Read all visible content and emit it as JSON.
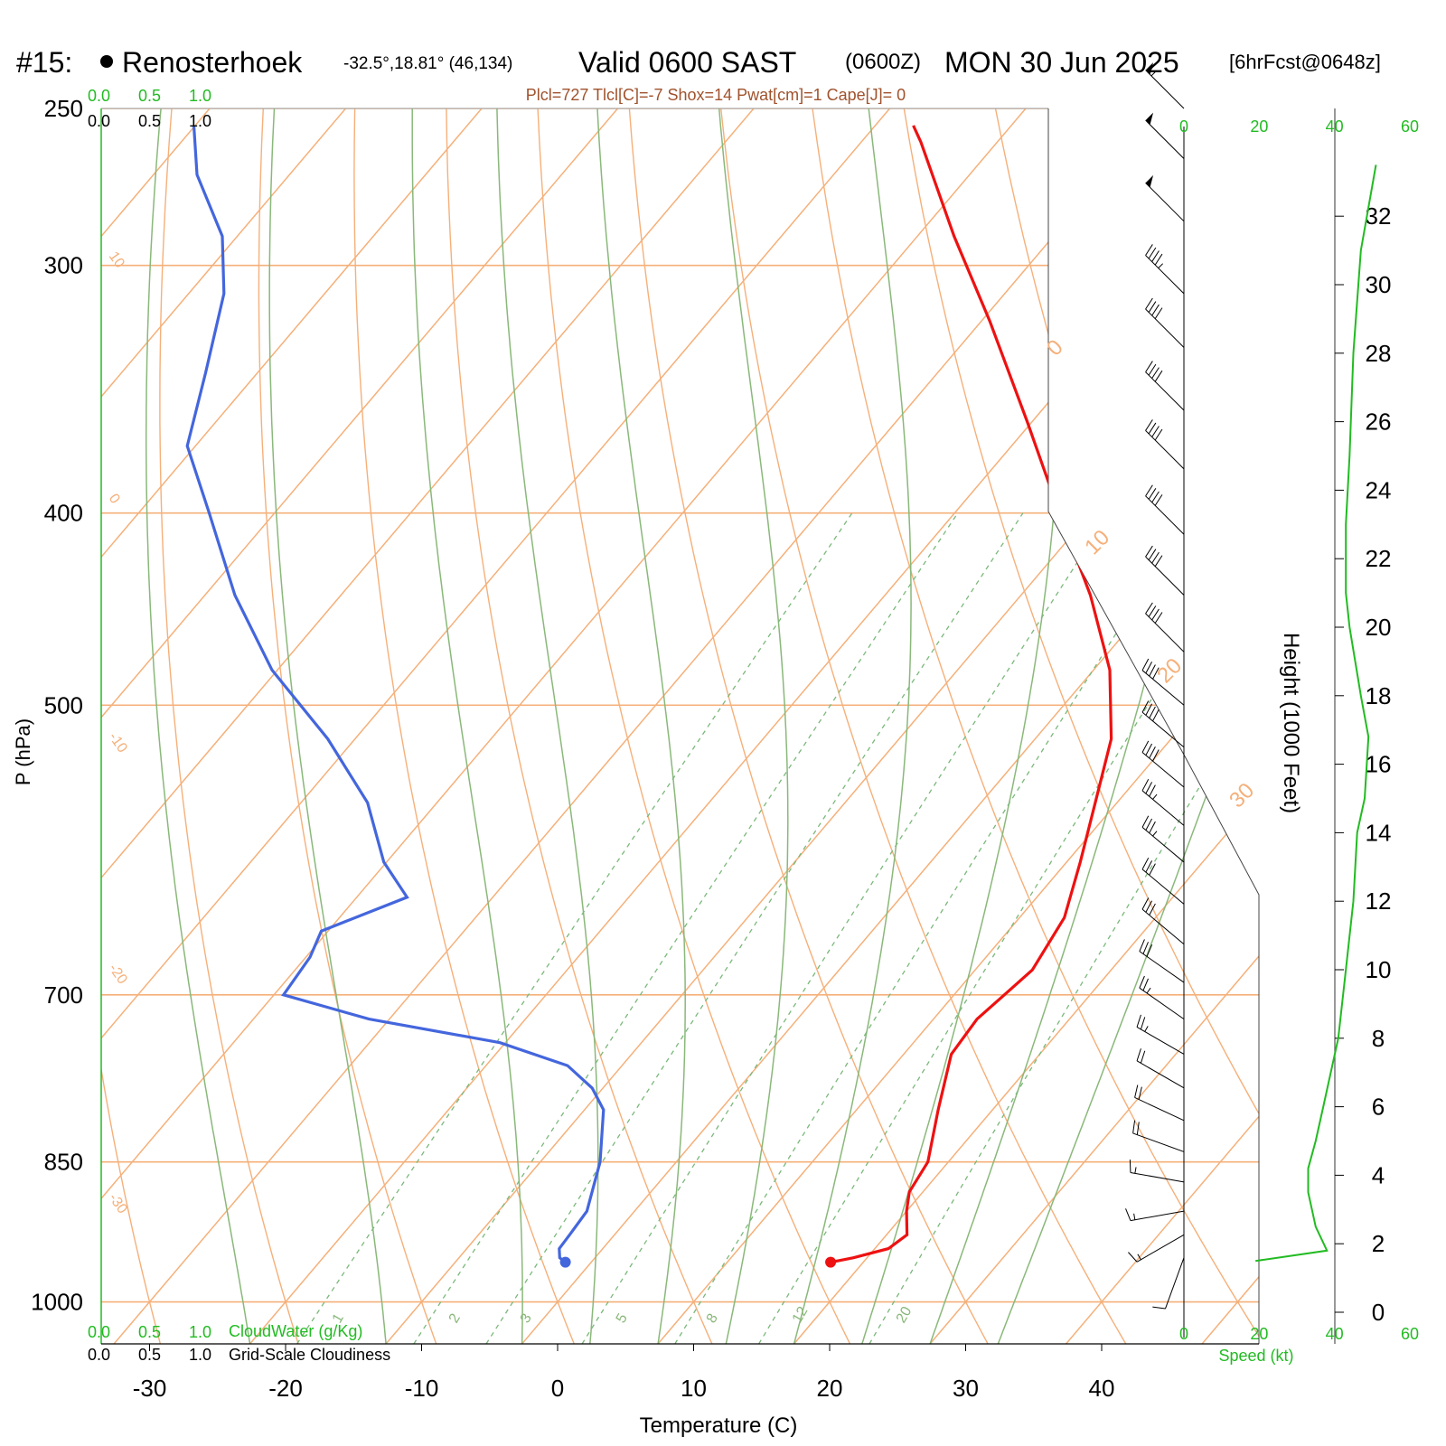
{
  "header": {
    "station_number": "#15:",
    "station_name": "Renosterhoek",
    "station_coords": "-32.5°,18.81° (46,134)",
    "valid_label": "Valid 0600 SAST",
    "utc_label": "(0600Z)",
    "date_label": "MON 30 Jun 2025",
    "forecast_label": "[6hrFcst@0648z]",
    "indices": "Plcl=727 Tlcl[C]=-7 Shox=14 Pwat[cm]=1 Cape[J]= 0"
  },
  "cloud_scale": {
    "top_green": [
      "0.0",
      "0.5",
      "1.0"
    ],
    "top_black": [
      "0.0",
      "0.5",
      "1.0"
    ],
    "bottom_green": [
      "0.0",
      "0.5",
      "1.0"
    ],
    "bottom_black": [
      "0.0",
      "0.5",
      "1.0"
    ],
    "cloudwater_label": "CloudWater (g/Kg)",
    "cloudiness_label": "Grid-Scale Cloudiness"
  },
  "speed_axis": {
    "ticks": [
      "0",
      "20",
      "40",
      "60"
    ],
    "label": "Speed (kt)"
  },
  "colors": {
    "temperature": "#ee1111",
    "dewpoint": "#4466dd",
    "isotherm": "#f5b07a",
    "dry_adiabat": "#f5b07a",
    "moist_adiabat": "#8ab87a",
    "mixing_ratio": "#7ab87a",
    "wind_speed": "#22bb22",
    "indices": "#a0522d"
  },
  "chart_data": {
    "type": "line",
    "title": "Renosterhoek Valid 0600 SAST (0600Z) MON 30 Jun 2025",
    "xlabel": "Temperature (C)",
    "ylabel": "P (hPa)",
    "y2label": "Height (1000 Feet)",
    "x_ticks": [
      "-30",
      "-20",
      "-10",
      "0",
      "10",
      "20",
      "30",
      "40"
    ],
    "y_ticks": [
      "250",
      "300",
      "400",
      "500",
      "700",
      "850",
      "1000"
    ],
    "height_ticks": [
      "0",
      "2",
      "4",
      "6",
      "8",
      "10",
      "12",
      "14",
      "16",
      "18",
      "20",
      "22",
      "24",
      "26",
      "28",
      "30",
      "32"
    ],
    "isotherm_labels": [
      "10",
      "0",
      "-10",
      "-20",
      "-30"
    ],
    "isotherm_labels_right": [
      "0",
      "10",
      "20",
      "30"
    ],
    "mixing_ratio_labels": [
      "1",
      "2",
      "3",
      "5",
      "8",
      "12",
      "20"
    ],
    "series": [
      {
        "name": "Temperature",
        "pressure_hpa": [
          955,
          950,
          940,
          925,
          900,
          880,
          850,
          800,
          750,
          720,
          700,
          680,
          640,
          600,
          560,
          520,
          480,
          440,
          400,
          360,
          320,
          290,
          260,
          255
        ],
        "temperature_c": [
          17.6,
          19,
          21,
          21.5,
          20,
          19,
          18.5,
          16,
          13.5,
          13.2,
          13.7,
          14.2,
          13.3,
          11,
          8.4,
          5.6,
          1.2,
          -4.9,
          -12.3,
          -20.3,
          -29.4,
          -37.3,
          -45.6,
          -47.2
        ]
      },
      {
        "name": "Dewpoint",
        "pressure_hpa": [
          955,
          950,
          940,
          925,
          900,
          850,
          800,
          780,
          760,
          740,
          720,
          700,
          670,
          650,
          625,
          600,
          560,
          520,
          480,
          440,
          400,
          370,
          340,
          310,
          290,
          270,
          255
        ],
        "dewpoint_c": [
          -1.9,
          -2.6,
          -3.2,
          -3.3,
          -3.5,
          -5.6,
          -8.6,
          -10.8,
          -14,
          -20.4,
          -31.5,
          -39.3,
          -39.7,
          -40.5,
          -36.3,
          -40.2,
          -45.1,
          -52,
          -60.4,
          -67.8,
          -74.8,
          -80.6,
          -83.8,
          -87.4,
          -91.1,
          -96.8,
          -100.1
        ]
      }
    ],
    "wind_speed_profile": {
      "height_kft": [
        1.5,
        1.8,
        2.5,
        3.5,
        4.2,
        5,
        6,
        8,
        10,
        12,
        14,
        15,
        16.8,
        18,
        20,
        21,
        23,
        25,
        28,
        31,
        33.5
      ],
      "speed_kt": [
        19,
        38,
        35,
        33,
        33,
        35,
        37,
        41,
        43,
        45,
        46,
        48,
        49,
        47,
        44,
        43,
        43,
        44,
        45,
        47,
        51
      ]
    },
    "wind_barbs": {
      "pressure_hpa": [
        950,
        925,
        900,
        870,
        840,
        810,
        780,
        750,
        720,
        690,
        660,
        630,
        600,
        575,
        550,
        525,
        500,
        470,
        440,
        410,
        380,
        355,
        330,
        310,
        285,
        265,
        250
      ],
      "direction_deg": [
        200,
        240,
        260,
        280,
        290,
        295,
        300,
        300,
        305,
        305,
        310,
        310,
        310,
        310,
        310,
        310,
        310,
        315,
        315,
        315,
        315,
        315,
        315,
        315,
        315,
        315,
        315
      ],
      "speed_kt": [
        10,
        15,
        15,
        15,
        20,
        20,
        20,
        25,
        25,
        30,
        30,
        30,
        35,
        35,
        40,
        40,
        40,
        40,
        40,
        40,
        40,
        40,
        40,
        45,
        50,
        50,
        55
      ]
    },
    "surface_temperature_c": 17.6,
    "surface_dewpoint_c": -1.9
  }
}
